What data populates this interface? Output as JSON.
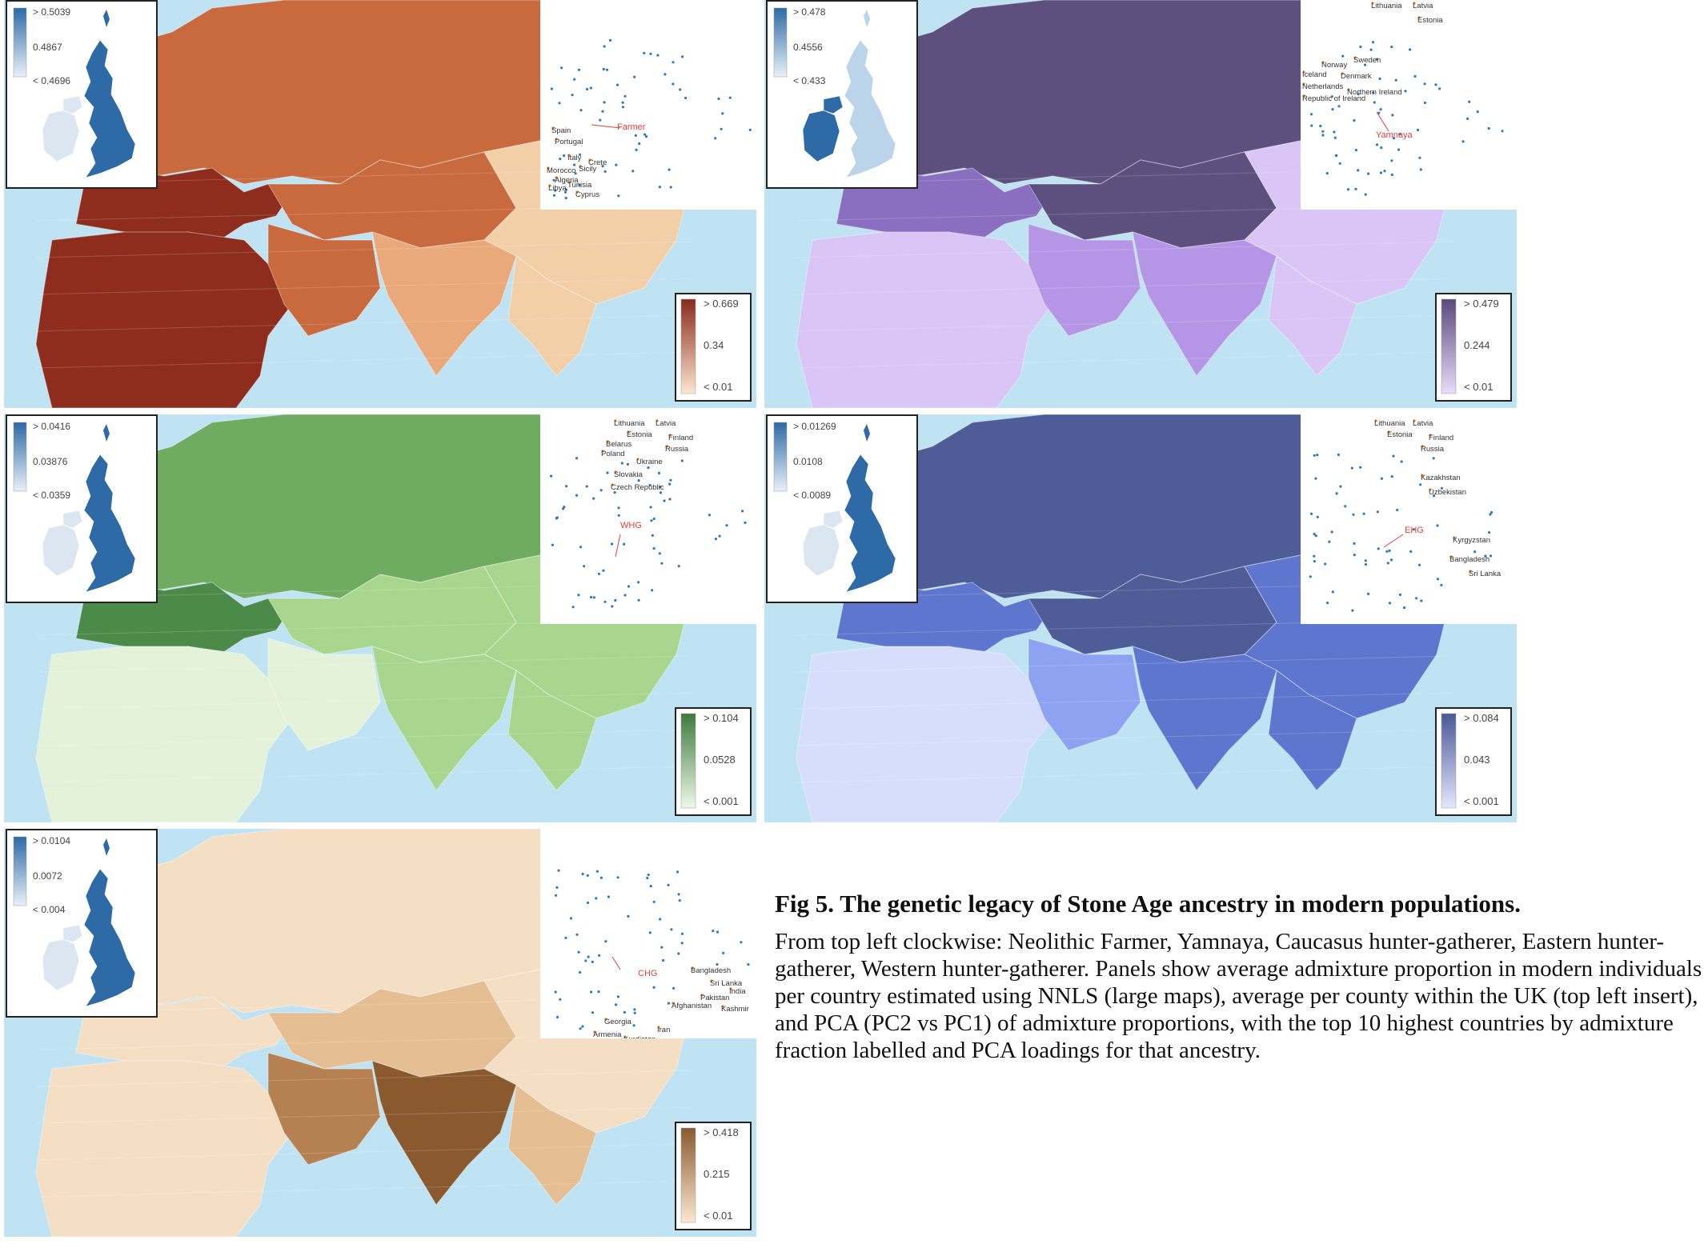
{
  "panels": [
    {
      "id": "farmer",
      "ancestry_label": "Farmer",
      "legend": {
        "max": "> 0.669",
        "mid": "0.34",
        "min": "< 0.01",
        "color_high": "#8a2a1c",
        "color_low": "#fbe6d0"
      },
      "uk_legend": {
        "max": "> 0.5039",
        "mid": "0.4867",
        "min": "< 0.4696"
      },
      "top_countries": [
        "Spain",
        "Portugal",
        "Italy",
        "Crete",
        "Morocco",
        "Sicily",
        "Algeria",
        "Tunisia",
        "Libya",
        "Cyprus"
      ],
      "map_colors": {
        "ocean": "#bfe3f3",
        "region_strong": "#8e2c1e",
        "region_mid": "#c8693e",
        "region_light": "#e9a97a",
        "region_pale": "#f3cfa8"
      }
    },
    {
      "id": "yamnaya",
      "ancestry_label": "Yamnaya",
      "legend": {
        "max": "> 0.479",
        "mid": "0.244",
        "min": "< 0.01",
        "color_high": "#5a4a7c",
        "color_low": "#e8dcfb"
      },
      "uk_legend": {
        "max": "> 0.478",
        "mid": "0.4556",
        "min": "< 0.433"
      },
      "top_countries": [
        "Lithuania",
        "Latvia",
        "Estonia",
        "Norway",
        "Sweden",
        "Iceland",
        "Denmark",
        "Netherlands",
        "Northern Ireland",
        "Republic of Ireland"
      ],
      "map_colors": {
        "ocean": "#bfe3f3",
        "region_strong": "#5d4f7e",
        "region_mid": "#8a6ec0",
        "region_light": "#b596e6",
        "region_pale": "#d9c6f6"
      }
    },
    {
      "id": "whg",
      "ancestry_label": "WHG",
      "legend": {
        "max": "> 0.104",
        "mid": "0.0528",
        "min": "< 0.001",
        "color_high": "#3f7a3d",
        "color_low": "#eef8e8"
      },
      "uk_legend": {
        "max": "> 0.0416",
        "mid": "0.03876",
        "min": "< 0.0359"
      },
      "top_countries": [
        "Lithuania",
        "Latvia",
        "Estonia",
        "Finland",
        "Belarus",
        "Russia",
        "Poland",
        "Ukraine",
        "Slovakia",
        "Czech Republic"
      ],
      "map_colors": {
        "ocean": "#bfe3f3",
        "region_strong": "#4c8a4a",
        "region_mid": "#6fac62",
        "region_light": "#a9d68f",
        "region_pale": "#e4f2da"
      }
    },
    {
      "id": "ehg",
      "ancestry_label": "EHG",
      "legend": {
        "max": "> 0.084",
        "mid": "0.043",
        "min": "< 0.001",
        "color_high": "#4a5896",
        "color_low": "#e3e8ff"
      },
      "uk_legend": {
        "max": "> 0.01269",
        "mid": "0.0108",
        "min": "< 0.0089"
      },
      "top_countries": [
        "Lithuania",
        "Latvia",
        "Estonia",
        "Finland",
        "Russia",
        "Kazakhstan",
        "Uzbekistan",
        "Kyrgyzstan",
        "Bangladesh",
        "Sri Lanka"
      ],
      "map_colors": {
        "ocean": "#bfe3f3",
        "region_strong": "#4e5c98",
        "region_mid": "#5f76cf",
        "region_light": "#8da3f2",
        "region_pale": "#d6defc"
      }
    },
    {
      "id": "chg",
      "ancestry_label": "CHG",
      "legend": {
        "max": "> 0.418",
        "mid": "0.215",
        "min": "< 0.01",
        "color_high": "#8a5a2e",
        "color_low": "#fbe8d2"
      },
      "uk_legend": {
        "max": "> 0.0104",
        "mid": "0.0072",
        "min": "< 0.004"
      },
      "top_countries": [
        "Bangladesh",
        "Sri Lanka",
        "India",
        "Pakistan",
        "Afghanistan",
        "Kashmir",
        "Georgia",
        "Iran",
        "Armenia",
        "Kurdistan"
      ],
      "map_colors": {
        "ocean": "#bfe3f3",
        "region_strong": "#8a5a2e",
        "region_mid": "#b68150",
        "region_light": "#e5bf93",
        "region_pale": "#f5dfc4"
      }
    }
  ],
  "uk_colors": {
    "high": "#2d6aa6",
    "low": "#e9f1f8"
  },
  "pca_colors": {
    "dots": "#2f7bb8",
    "labels": "#e07a1f",
    "loading": "#e04040"
  },
  "caption": {
    "title": "Fig 5. The genetic legacy of Stone Age ancestry in modern populations.",
    "body": "From top left clockwise: Neolithic Farmer, Yamnaya, Caucasus hunter-gatherer, Eastern hunter-gatherer, Western hunter-gatherer. Panels show average admixture proportion in modern individuals per country estimated using NNLS (large maps), average per county within the UK (top left insert), and PCA (PC2 vs PC1) of admixture proportions, with the top 10 highest countries by admixture fraction labelled and PCA loadings for that ancestry."
  }
}
